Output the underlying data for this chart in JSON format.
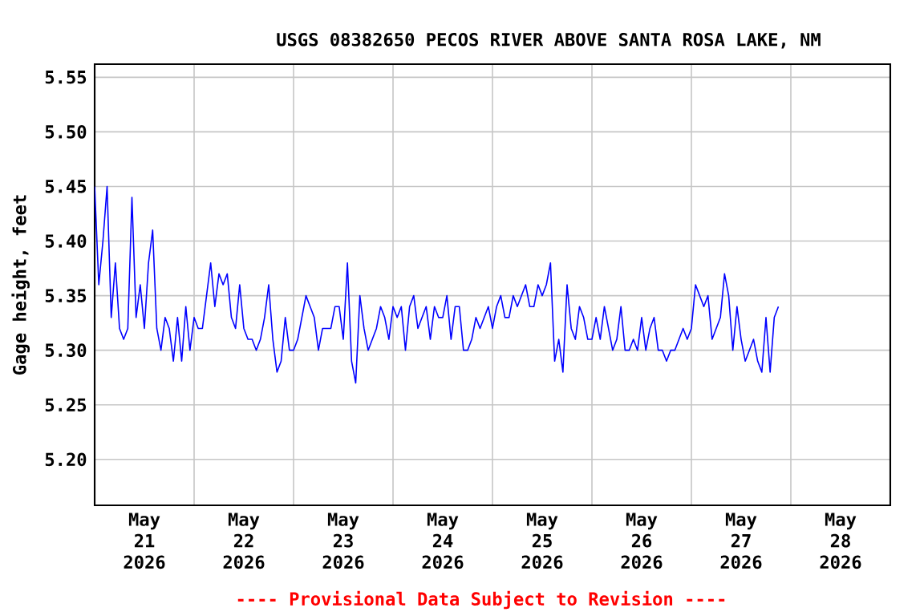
{
  "chart_data": {
    "type": "line",
    "title": "USGS 08382650 PECOS RIVER ABOVE SANTA ROSA LAKE, NM",
    "ylabel": "Gage height, feet",
    "annotations": [
      "---- Provisional Data Subject to Revision ----"
    ],
    "color": "#0000ff",
    "grid": true,
    "xlim": [
      "2026-05-21T00:00",
      "2026-05-29T00:00"
    ],
    "xticks": [
      {
        "value": "2026-05-21T00:00",
        "label": null
      },
      {
        "value": "2026-05-22T00:00",
        "label": null
      },
      {
        "value": "2026-05-23T00:00",
        "label": null
      },
      {
        "value": "2026-05-24T00:00",
        "label": null
      },
      {
        "value": "2026-05-25T00:00",
        "label": null
      },
      {
        "value": "2026-05-26T00:00",
        "label": null
      },
      {
        "value": "2026-05-27T00:00",
        "label": null
      },
      {
        "value": "2026-05-28T00:00",
        "label": null
      },
      {
        "value": "2026-05-29T00:00",
        "label": null
      },
      {
        "value": "2026-05-21T12:00",
        "label": "May 21 2026"
      },
      {
        "value": "2026-05-22T12:00",
        "label": "May 22 2026"
      },
      {
        "value": "2026-05-23T12:00",
        "label": "May 23 2026"
      },
      {
        "value": "2026-05-24T12:00",
        "label": "May 24 2026"
      },
      {
        "value": "2026-05-25T12:00",
        "label": "May 25 2026"
      },
      {
        "value": "2026-05-26T12:00",
        "label": "May 26 2026"
      },
      {
        "value": "2026-05-27T12:00",
        "label": "May 27 2026"
      },
      {
        "value": "2026-05-28T12:00",
        "label": "May 28 2026"
      }
    ],
    "ylim": [
      5.158,
      5.562
    ],
    "yticks": [
      {
        "value": 5.2,
        "label": "5.20"
      },
      {
        "value": 5.25,
        "label": "5.25"
      },
      {
        "value": 5.3,
        "label": "5.30"
      },
      {
        "value": 5.35,
        "label": "5.35"
      },
      {
        "value": 5.4,
        "label": "5.40"
      },
      {
        "value": 5.45,
        "label": "5.45"
      },
      {
        "value": 5.5,
        "label": "5.50"
      },
      {
        "value": 5.55,
        "label": "5.55"
      }
    ],
    "x": [
      "2026-05-21T00:00",
      "2026-05-21T01:00",
      "2026-05-21T02:00",
      "2026-05-21T03:00",
      "2026-05-21T04:00",
      "2026-05-21T05:00",
      "2026-05-21T06:00",
      "2026-05-21T07:00",
      "2026-05-21T08:00",
      "2026-05-21T09:00",
      "2026-05-21T10:00",
      "2026-05-21T11:00",
      "2026-05-21T12:00",
      "2026-05-21T13:00",
      "2026-05-21T14:00",
      "2026-05-21T15:00",
      "2026-05-21T16:00",
      "2026-05-21T17:00",
      "2026-05-21T18:00",
      "2026-05-21T19:00",
      "2026-05-21T20:00",
      "2026-05-21T21:00",
      "2026-05-21T22:00",
      "2026-05-21T23:00",
      "2026-05-22T00:00",
      "2026-05-22T01:00",
      "2026-05-22T02:00",
      "2026-05-22T03:00",
      "2026-05-22T04:00",
      "2026-05-22T05:00",
      "2026-05-22T06:00",
      "2026-05-22T07:00",
      "2026-05-22T08:00",
      "2026-05-22T09:00",
      "2026-05-22T10:00",
      "2026-05-22T11:00",
      "2026-05-22T12:00",
      "2026-05-22T13:00",
      "2026-05-22T14:00",
      "2026-05-22T15:00",
      "2026-05-22T16:00",
      "2026-05-22T17:00",
      "2026-05-22T18:00",
      "2026-05-22T19:00",
      "2026-05-22T20:00",
      "2026-05-22T21:00",
      "2026-05-22T22:00",
      "2026-05-22T23:00",
      "2026-05-23T00:00",
      "2026-05-23T01:00",
      "2026-05-23T02:00",
      "2026-05-23T03:00",
      "2026-05-23T04:00",
      "2026-05-23T05:00",
      "2026-05-23T06:00",
      "2026-05-23T07:00",
      "2026-05-23T08:00",
      "2026-05-23T09:00",
      "2026-05-23T10:00",
      "2026-05-23T11:00",
      "2026-05-23T12:00",
      "2026-05-23T13:00",
      "2026-05-23T14:00",
      "2026-05-23T15:00",
      "2026-05-23T16:00",
      "2026-05-23T17:00",
      "2026-05-23T18:00",
      "2026-05-23T19:00",
      "2026-05-23T20:00",
      "2026-05-23T21:00",
      "2026-05-23T22:00",
      "2026-05-23T23:00",
      "2026-05-24T00:00",
      "2026-05-24T01:00",
      "2026-05-24T02:00",
      "2026-05-24T03:00",
      "2026-05-24T04:00",
      "2026-05-24T05:00",
      "2026-05-24T06:00",
      "2026-05-24T07:00",
      "2026-05-24T08:00",
      "2026-05-24T09:00",
      "2026-05-24T10:00",
      "2026-05-24T11:00",
      "2026-05-24T12:00",
      "2026-05-24T13:00",
      "2026-05-24T14:00",
      "2026-05-24T15:00",
      "2026-05-24T16:00",
      "2026-05-24T17:00",
      "2026-05-24T18:00",
      "2026-05-24T19:00",
      "2026-05-24T20:00",
      "2026-05-24T21:00",
      "2026-05-24T22:00",
      "2026-05-24T23:00",
      "2026-05-25T00:00",
      "2026-05-25T01:00",
      "2026-05-25T02:00",
      "2026-05-25T03:00",
      "2026-05-25T04:00",
      "2026-05-25T05:00",
      "2026-05-25T06:00",
      "2026-05-25T07:00",
      "2026-05-25T08:00",
      "2026-05-25T09:00",
      "2026-05-25T10:00",
      "2026-05-25T11:00",
      "2026-05-25T12:00",
      "2026-05-25T13:00",
      "2026-05-25T14:00",
      "2026-05-25T15:00",
      "2026-05-25T16:00",
      "2026-05-25T17:00",
      "2026-05-25T18:00",
      "2026-05-25T19:00",
      "2026-05-25T20:00",
      "2026-05-25T21:00",
      "2026-05-25T22:00",
      "2026-05-25T23:00",
      "2026-05-26T00:00",
      "2026-05-26T01:00",
      "2026-05-26T02:00",
      "2026-05-26T03:00",
      "2026-05-26T04:00",
      "2026-05-26T05:00",
      "2026-05-26T06:00",
      "2026-05-26T07:00",
      "2026-05-26T08:00",
      "2026-05-26T09:00",
      "2026-05-26T10:00",
      "2026-05-26T11:00",
      "2026-05-26T12:00",
      "2026-05-26T13:00",
      "2026-05-26T14:00",
      "2026-05-26T15:00",
      "2026-05-26T16:00",
      "2026-05-26T17:00",
      "2026-05-26T18:00",
      "2026-05-26T19:00",
      "2026-05-26T20:00",
      "2026-05-26T21:00",
      "2026-05-26T22:00",
      "2026-05-26T23:00",
      "2026-05-27T00:00",
      "2026-05-27T01:00",
      "2026-05-27T02:00",
      "2026-05-27T03:00",
      "2026-05-27T04:00",
      "2026-05-27T05:00",
      "2026-05-27T06:00",
      "2026-05-27T07:00",
      "2026-05-27T08:00",
      "2026-05-27T09:00",
      "2026-05-27T10:00",
      "2026-05-27T11:00",
      "2026-05-27T12:00",
      "2026-05-27T13:00",
      "2026-05-27T14:00",
      "2026-05-27T15:00",
      "2026-05-27T16:00",
      "2026-05-27T17:00",
      "2026-05-27T18:00",
      "2026-05-27T19:00",
      "2026-05-27T20:00",
      "2026-05-27T21:00"
    ],
    "values": [
      5.45,
      5.36,
      5.4,
      5.45,
      5.33,
      5.38,
      5.32,
      5.31,
      5.32,
      5.44,
      5.33,
      5.36,
      5.32,
      5.38,
      5.41,
      5.32,
      5.3,
      5.33,
      5.32,
      5.29,
      5.33,
      5.29,
      5.34,
      5.3,
      5.33,
      5.32,
      5.32,
      5.35,
      5.38,
      5.34,
      5.37,
      5.36,
      5.37,
      5.33,
      5.32,
      5.36,
      5.32,
      5.31,
      5.31,
      5.3,
      5.31,
      5.33,
      5.36,
      5.31,
      5.28,
      5.29,
      5.33,
      5.3,
      5.3,
      5.31,
      5.33,
      5.35,
      5.34,
      5.33,
      5.3,
      5.32,
      5.32,
      5.32,
      5.34,
      5.34,
      5.31,
      5.38,
      5.29,
      5.27,
      5.35,
      5.32,
      5.3,
      5.31,
      5.32,
      5.34,
      5.33,
      5.31,
      5.34,
      5.33,
      5.34,
      5.3,
      5.34,
      5.35,
      5.32,
      5.33,
      5.34,
      5.31,
      5.34,
      5.33,
      5.33,
      5.35,
      5.31,
      5.34,
      5.34,
      5.3,
      5.3,
      5.31,
      5.33,
      5.32,
      5.33,
      5.34,
      5.32,
      5.34,
      5.35,
      5.33,
      5.33,
      5.35,
      5.34,
      5.35,
      5.36,
      5.34,
      5.34,
      5.36,
      5.35,
      5.36,
      5.38,
      5.29,
      5.31,
      5.28,
      5.36,
      5.32,
      5.31,
      5.34,
      5.33,
      5.31,
      5.31,
      5.33,
      5.31,
      5.34,
      5.32,
      5.3,
      5.31,
      5.34,
      5.3,
      5.3,
      5.31,
      5.3,
      5.33,
      5.3,
      5.32,
      5.33,
      5.3,
      5.3,
      5.29,
      5.3,
      5.3,
      5.31,
      5.32,
      5.31,
      5.32,
      5.36,
      5.35,
      5.34,
      5.35,
      5.31,
      5.32,
      5.33,
      5.37,
      5.35,
      5.3,
      5.34,
      5.31,
      5.29,
      5.3,
      5.31,
      5.29,
      5.28,
      5.33,
      5.28,
      5.33,
      5.34
    ]
  }
}
